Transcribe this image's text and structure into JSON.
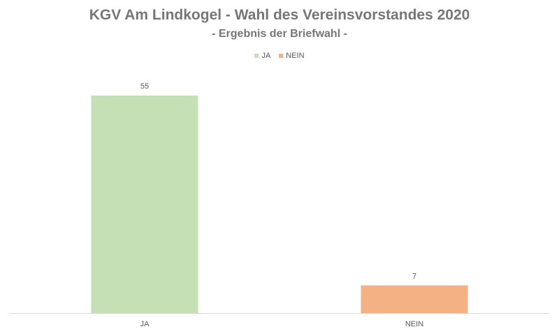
{
  "chart_data": {
    "type": "bar",
    "title": "KGV Am Lindkogel - Wahl des Vereinsvorstandes 2020",
    "subtitle": "- Ergebnis der Briefwahl -",
    "categories": [
      "JA",
      "NEIN"
    ],
    "values": [
      55,
      7
    ],
    "colors": [
      "#c5e0b4",
      "#f4b183"
    ],
    "axis_color": "#d9d9d9",
    "legend": {
      "placement": "top",
      "entries": [
        {
          "label": "JA",
          "color": "#c5e0b4"
        },
        {
          "label": "NEIN",
          "color": "#f4b183"
        }
      ]
    },
    "ylim": [
      0,
      60
    ],
    "grid": false,
    "y_axis_visible": false
  }
}
